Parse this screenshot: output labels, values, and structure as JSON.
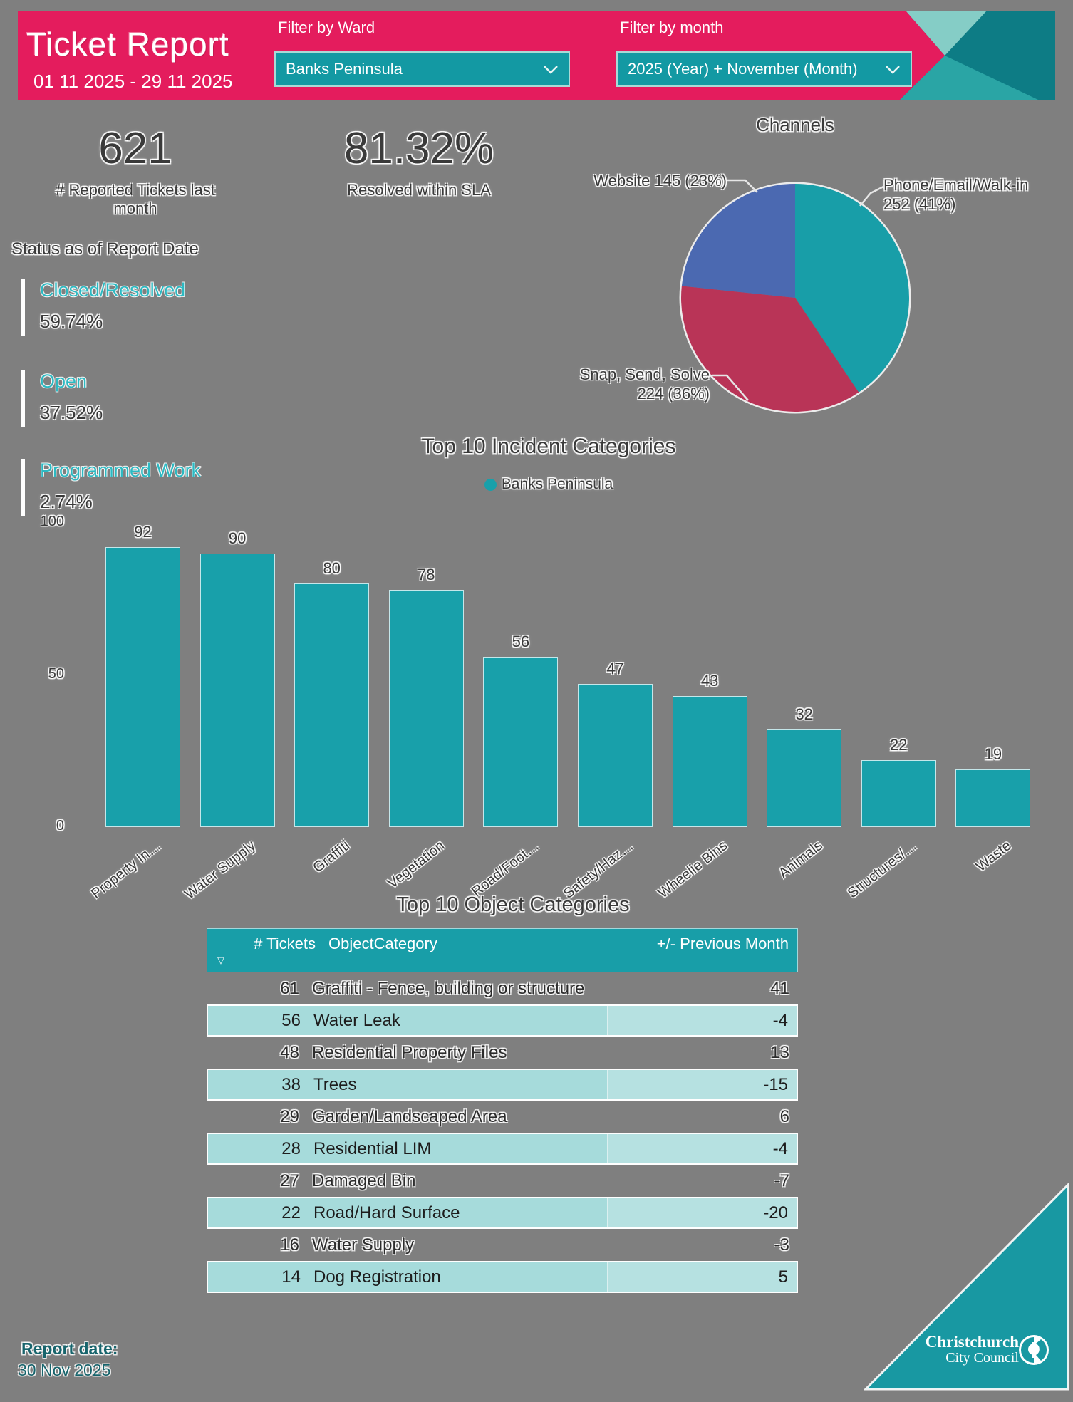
{
  "header": {
    "title": "Ticket Report",
    "date_range": "01 11 2025 - 29 11 2025",
    "ward_filter": {
      "label": "Filter by Ward",
      "value": "Banks Peninsula"
    },
    "month_filter": {
      "label": "Filter by month",
      "value": "2025 (Year) + November (Month)"
    },
    "colors": {
      "pink": "#E41C5D",
      "teal_dark": "#0D7C85",
      "teal_light": "#85CDC6",
      "teal_mid": "#2AA5A5",
      "dropdown": "#1399A3"
    }
  },
  "kpis": [
    {
      "value": "621",
      "label": "# Reported Tickets last month"
    },
    {
      "value": "81.32%",
      "label": "Resolved within SLA"
    }
  ],
  "status": {
    "title": "Status as of Report Date",
    "items": [
      {
        "label": "Closed/Resolved",
        "value": "59.74%"
      },
      {
        "label": "Open",
        "value": "37.52%"
      },
      {
        "label": "Programmed Work",
        "value": "2.74%"
      }
    ]
  },
  "chart_data": [
    {
      "type": "pie",
      "title": "Channels",
      "slices": [
        {
          "label": "Phone/Email/Walk-in",
          "value": 252,
          "pct": "41%",
          "color": "#189EA8",
          "label_lines": [
            "Phone/Email/Walk-in",
            "252 (41%)"
          ]
        },
        {
          "label": "Snap, Send, Solve",
          "value": 224,
          "pct": "36%",
          "color": "#B93457",
          "label_lines": [
            "Snap, Send, Solve",
            "224 (36%)"
          ]
        },
        {
          "label": "Website",
          "value": 145,
          "pct": "23%",
          "color": "#4B69B1",
          "label_lines": [
            "Website 145 (23%)"
          ]
        }
      ]
    },
    {
      "type": "bar",
      "title": "Top 10 Incident Categories",
      "legend": "Banks Peninsula",
      "bar_color": "#18A0AA",
      "categories": [
        "Property In…",
        "Water Supply",
        "Graffiti",
        "Vegetation",
        "Road/Foot…",
        "Safety/Haz…",
        "Wheelie Bins",
        "Animals",
        "Structures/…",
        "Waste"
      ],
      "values": [
        92,
        90,
        80,
        78,
        56,
        47,
        43,
        32,
        22,
        19
      ],
      "xlabel": "",
      "ylabel": "",
      "ylim": [
        0,
        100
      ],
      "yticks": [
        0,
        50,
        100
      ],
      "grid": false,
      "legend_position": "top-center"
    }
  ],
  "table": {
    "title": "Top 10 Object Categories",
    "columns": [
      "# Tickets",
      "ObjectCategory",
      "+/- Previous Month"
    ],
    "sort_icon": "sort-descending",
    "rows": [
      [
        "61",
        "Graffiti - Fence, building or structure",
        "41"
      ],
      [
        "56",
        "Water Leak",
        "-4"
      ],
      [
        "48",
        "Residential Property Files",
        "13"
      ],
      [
        "38",
        "Trees",
        "-15"
      ],
      [
        "29",
        "Garden/Landscaped Area",
        "6"
      ],
      [
        "28",
        "Residential LIM",
        "-4"
      ],
      [
        "27",
        "Damaged Bin",
        "-7"
      ],
      [
        "22",
        "Road/Hard Surface",
        "-20"
      ],
      [
        "16",
        "Water Supply",
        "-3"
      ],
      [
        "14",
        "Dog Registration",
        "5"
      ]
    ],
    "header_color": "#189EA8",
    "row_alt_color": "#A6DBDB"
  },
  "footer": {
    "report_date_label": "Report date:",
    "report_date_value": "30 Nov 2025",
    "logo_line1": "Christchurch",
    "logo_line2": "City Council",
    "triangle_color": "#1898A2"
  }
}
